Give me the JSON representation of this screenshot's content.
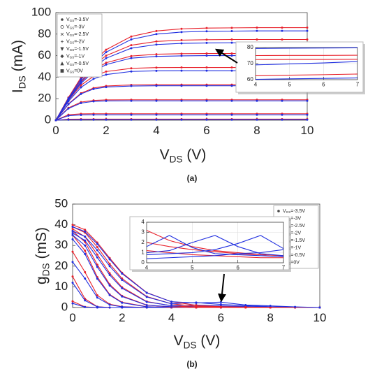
{
  "captions": [
    "(a)",
    "(b)"
  ],
  "chart_data": [
    {
      "type": "line",
      "xlabel": "VDS (V)",
      "ylabel": "IDS (mA)",
      "legend": "upper left",
      "x": [
        0,
        0.5,
        1,
        1.5,
        2,
        3,
        4,
        5,
        6,
        7,
        8,
        9,
        10
      ],
      "xlim": [
        0,
        10
      ],
      "xticks": [
        0,
        2,
        4,
        6,
        8,
        10
      ],
      "ylim": [
        0,
        100
      ],
      "yticks": [
        0,
        20,
        40,
        60,
        80,
        100
      ],
      "grid": false,
      "series": [
        {
          "name": "VGS=-3.5V",
          "marker": "dot",
          "curves": [
            {
              "color": "#e8202a",
              "values": [
                0,
                0.9,
                1,
                1,
                1,
                1,
                1,
                1,
                1,
                1,
                1,
                1,
                1
              ]
            },
            {
              "color": "#1f2ee0",
              "values": [
                0,
                0.45,
                0.5,
                0.5,
                0.5,
                0.5,
                0.5,
                0.5,
                0.5,
                0.5,
                0.5,
                0.5,
                0.5
              ]
            }
          ]
        },
        {
          "name": "VGS=-3V",
          "marker": "circle",
          "curves": [
            {
              "color": "#e8202a",
              "values": [
                0,
                5.1,
                5.9,
                6,
                6,
                6,
                6,
                6,
                6,
                6,
                6,
                6,
                6
              ]
            },
            {
              "color": "#1f2ee0",
              "values": [
                0,
                4.2,
                4.9,
                5,
                5,
                5,
                5,
                5,
                5,
                5,
                5,
                5,
                5
              ]
            }
          ]
        },
        {
          "name": "VGS=-2.5V",
          "marker": "x",
          "curves": [
            {
              "color": "#e8202a",
              "values": [
                0,
                11.5,
                16.8,
                18.4,
                18.9,
                19,
                19,
                19,
                19,
                19,
                19,
                19,
                19
              ]
            },
            {
              "color": "#1f2ee0",
              "values": [
                0,
                10.9,
                15.9,
                17.5,
                17.9,
                18,
                18,
                18,
                18,
                18,
                18,
                18,
                18
              ]
            }
          ]
        },
        {
          "name": "VGS=-2V",
          "marker": "plus",
          "curves": [
            {
              "color": "#e8202a",
              "values": [
                0,
                15.2,
                25.1,
                29.9,
                31.8,
                32.8,
                33,
                33,
                33,
                33,
                33,
                33,
                33
              ]
            },
            {
              "color": "#1f2ee0",
              "values": [
                0,
                14.8,
                24.4,
                29,
                30.8,
                31.8,
                32,
                32,
                32,
                32,
                32,
                32,
                32
              ]
            }
          ]
        },
        {
          "name": "VGS=-1.5V",
          "marker": "triangle-down",
          "curves": [
            {
              "color": "#e8202a",
              "values": [
                0,
                18.6,
                32.5,
                40.9,
                45.2,
                48.2,
                48.9,
                49,
                49,
                49,
                49,
                49,
                49
              ]
            },
            {
              "color": "#1f2ee0",
              "values": [
                0,
                17.5,
                30.5,
                38.4,
                42.4,
                45.3,
                45.9,
                46,
                46,
                46,
                46,
                46,
                46
              ]
            }
          ]
        },
        {
          "name": "VGS=-1V",
          "marker": "diamond",
          "curves": [
            {
              "color": "#e8202a",
              "values": [
                0,
                19.5,
                35.5,
                46.6,
                53.4,
                59.6,
                61.3,
                61.8,
                62,
                62,
                62,
                62,
                62
              ]
            },
            {
              "color": "#1f2ee0",
              "values": [
                0,
                18.8,
                34.3,
                45.1,
                51.7,
                57.7,
                59.3,
                59.8,
                60,
                60,
                60,
                60,
                60
              ]
            }
          ]
        },
        {
          "name": "VGS=-0.5V",
          "marker": "triangle-up",
          "curves": [
            {
              "color": "#e8202a",
              "values": [
                0,
                20.1,
                37.6,
                50.9,
                60,
                69.7,
                73.2,
                74.4,
                74.8,
                75,
                75,
                75,
                75
              ]
            },
            {
              "color": "#1f2ee0",
              "values": [
                0,
                19.3,
                36.1,
                48.8,
                57.6,
                66.9,
                70.3,
                71.4,
                71.8,
                72,
                72,
                72,
                72
              ]
            }
          ]
        },
        {
          "name": "VGS=0V",
          "marker": "square",
          "curves": [
            {
              "color": "#e8202a",
              "values": [
                0,
                21.1,
                39.7,
                54.6,
                65.5,
                77.8,
                82.9,
                84.9,
                85.6,
                85.8,
                86,
                86,
                86
              ]
            },
            {
              "color": "#1f2ee0",
              "values": [
                0,
                20.3,
                38.3,
                52.7,
                63.2,
                75.1,
                80,
                81.9,
                82.6,
                82.8,
                83,
                83,
                83
              ]
            }
          ]
        }
      ]
    },
    {
      "type": "line",
      "x": [
        4,
        5,
        6,
        7
      ],
      "xlim": [
        4,
        7
      ],
      "xticks": [
        4,
        5,
        6,
        7
      ],
      "ylim": [
        60,
        80
      ],
      "yticks": [
        60,
        70,
        80
      ],
      "grid": true,
      "series": [
        {
          "color": "#1f2ee0",
          "values": [
            79.4,
            79.6,
            79.7,
            79.8
          ]
        },
        {
          "color": "#e8202a",
          "values": [
            75,
            75.1,
            75.1,
            75.2
          ]
        },
        {
          "color": "#e8202a",
          "values": [
            72.5,
            72.6,
            72.6,
            72.7
          ]
        },
        {
          "color": "#1f2ee0",
          "values": [
            69.2,
            69.8,
            70.4,
            71.3
          ]
        },
        {
          "color": "#e8202a",
          "values": [
            62.4,
            62.8,
            63.1,
            63.5
          ]
        },
        {
          "color": "#1f2ee0",
          "values": [
            60.2,
            60.5,
            60.8,
            61.1
          ]
        }
      ]
    },
    {
      "type": "line",
      "xlabel": "VDS (V)",
      "ylabel": "gDS (mS)",
      "legend": "upper right",
      "x": [
        0,
        0.5,
        1,
        1.5,
        2,
        3,
        4,
        5,
        6,
        7,
        8,
        9,
        10
      ],
      "xlim": [
        0,
        10
      ],
      "xticks": [
        0,
        2,
        4,
        6,
        8,
        10
      ],
      "ylim": [
        0,
        50
      ],
      "yticks": [
        0,
        10,
        20,
        30,
        40,
        50
      ],
      "grid": false,
      "series": [
        {
          "name": "VGS=-3.5V",
          "marker": "dot",
          "curves": [
            {
              "color": "#e8202a",
              "values": [
                3,
                0.3,
                0,
                0,
                0,
                0,
                0,
                0,
                0,
                0,
                0,
                0,
                0
              ]
            },
            {
              "color": "#1f2ee0",
              "values": [
                2,
                0.2,
                0,
                0,
                0,
                0,
                0,
                0,
                0,
                0,
                0,
                0,
                0
              ]
            }
          ]
        },
        {
          "name": "VGS=-3V",
          "marker": "circle",
          "curves": [
            {
              "color": "#e8202a",
              "values": [
                15,
                4.2,
                0.4,
                0,
                0,
                0,
                0,
                0,
                0,
                0,
                0,
                0,
                0
              ]
            },
            {
              "color": "#1f2ee0",
              "values": [
                12,
                3.4,
                0.3,
                0,
                0,
                0,
                0,
                0,
                0,
                0,
                0,
                0,
                0
              ]
            }
          ]
        },
        {
          "name": "VGS=-2.5V",
          "marker": "x",
          "curves": [
            {
              "color": "#e8202a",
              "values": [
                27,
                17.1,
                5.9,
                1.6,
                0.4,
                0,
                0,
                0,
                0,
                0,
                0,
                0,
                0
              ]
            },
            {
              "color": "#1f2ee0",
              "values": [
                22,
                14,
                4.8,
                1.3,
                0.3,
                0,
                0,
                0,
                0,
                0,
                0,
                0,
                0
              ]
            }
          ]
        },
        {
          "name": "VGS=-2V",
          "marker": "plus",
          "curves": [
            {
              "color": "#e8202a",
              "values": [
                35,
                27.5,
                14.7,
                6.3,
                2.5,
                0.4,
                0,
                0,
                0,
                0,
                0,
                0,
                0
              ]
            },
            {
              "color": "#1f2ee0",
              "values": [
                33,
                25.9,
                13.9,
                6,
                2.3,
                0.3,
                0.1,
                0,
                0,
                0,
                0,
                0,
                0
              ]
            }
          ]
        },
        {
          "name": "VGS=-1.5V",
          "marker": "triangle-down",
          "curves": [
            {
              "color": "#e8202a",
              "values": [
                37,
                31.7,
                20.7,
                11.2,
                5.6,
                1.2,
                0.2,
                0,
                0,
                0,
                0,
                0,
                0
              ]
            },
            {
              "color": "#1f2ee0",
              "values": [
                35,
                30,
                19.6,
                10.6,
                5.3,
                1.1,
                0.4,
                0.6,
                0.5,
                0.3,
                0.2,
                0,
                0
              ]
            }
          ]
        },
        {
          "name": "VGS=-1V",
          "marker": "diamond",
          "curves": [
            {
              "color": "#e8202a",
              "values": [
                38,
                34.2,
                25.6,
                16.6,
                9.8,
                2.9,
                0.8,
                0.2,
                0.1,
                0,
                0,
                0,
                0
              ]
            },
            {
              "color": "#1f2ee0",
              "values": [
                36,
                32.4,
                24.2,
                15.7,
                9.3,
                2.7,
                0.9,
                1.2,
                0.8,
                0.5,
                0.3,
                0.1,
                0
              ]
            }
          ]
        },
        {
          "name": "VGS=-0.5V",
          "marker": "triangle-up",
          "curves": [
            {
              "color": "#e8202a",
              "values": [
                39,
                36.2,
                29.2,
                21.1,
                14,
                5.3,
                1.8,
                0.6,
                0.2,
                0.1,
                0,
                0,
                0
              ]
            },
            {
              "color": "#1f2ee0",
              "values": [
                37,
                34.3,
                27.7,
                20,
                13.3,
                5.1,
                1.8,
                2.4,
                1.5,
                0.9,
                0.4,
                0.2,
                0
              ]
            }
          ]
        },
        {
          "name": "VGS=0V",
          "marker": "square",
          "curves": [
            {
              "color": "#e8202a",
              "values": [
                40,
                37.6,
                31.4,
                23.9,
                16.8,
                7.2,
                2.8,
                1.1,
                0.4,
                0.2,
                0.1,
                0,
                0
              ]
            },
            {
              "color": "#1f2ee0",
              "values": [
                39,
                36.7,
                30.7,
                23.3,
                16.4,
                7.1,
                2.8,
                2.2,
                2.6,
                1.2,
                0.8,
                0.3,
                0
              ]
            }
          ]
        }
      ]
    },
    {
      "type": "line",
      "x": [
        4,
        4.5,
        5,
        5.5,
        6,
        6.5,
        7
      ],
      "xlim": [
        4,
        7
      ],
      "xticks": [
        4,
        5,
        6,
        7
      ],
      "ylim": [
        0,
        4
      ],
      "yticks": [
        0,
        1,
        2,
        3,
        4
      ],
      "grid": true,
      "series": [
        {
          "color": "#e8202a",
          "values": [
            3.2,
            2.2,
            1.6,
            1.2,
            1,
            0.8,
            0.7
          ]
        },
        {
          "color": "#e8202a",
          "values": [
            2,
            1.6,
            1.3,
            1.1,
            0.9,
            0.8,
            0.7
          ]
        },
        {
          "color": "#e8202a",
          "values": [
            1.2,
            1,
            0.8,
            0.7,
            0.6,
            0.5,
            0.5
          ]
        },
        {
          "color": "#1f2ee0",
          "values": [
            1.6,
            2.7,
            1.5,
            0.9,
            0.8,
            0.7,
            0.6
          ]
        },
        {
          "color": "#1f2ee0",
          "values": [
            1,
            1.2,
            2,
            2.7,
            1.6,
            0.9,
            0.7
          ]
        },
        {
          "color": "#1f2ee0",
          "values": [
            0.8,
            0.9,
            1,
            1.3,
            1.9,
            2.7,
            1.4
          ]
        },
        {
          "color": "#1f2ee0",
          "values": [
            0.4,
            0.5,
            0.6,
            0.7,
            0.9,
            1,
            1.3
          ]
        }
      ]
    }
  ]
}
